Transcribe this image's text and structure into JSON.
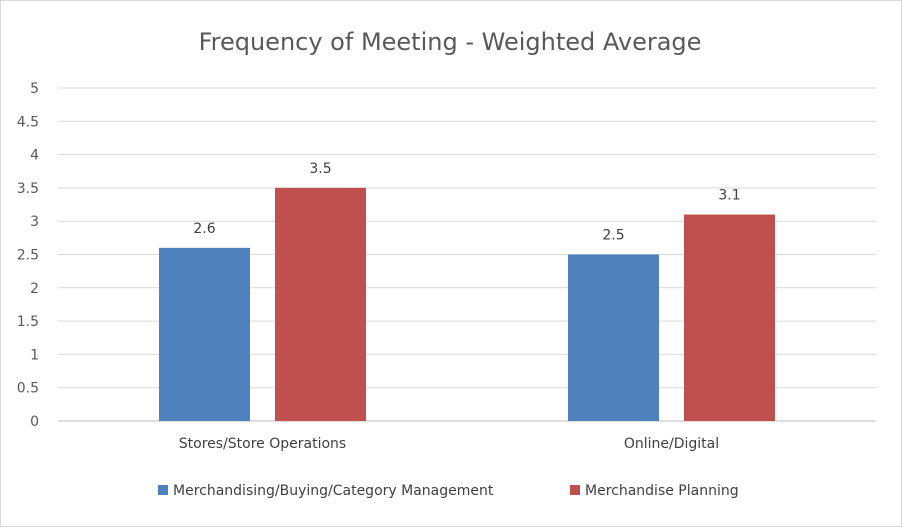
{
  "chart_data": {
    "type": "bar",
    "title": "Frequency of Meeting - Weighted Average",
    "categories": [
      "Stores/Store Operations",
      "Online/Digital"
    ],
    "series": [
      {
        "name": "Merchandising/Buying/Category Management",
        "values": [
          2.6,
          2.5
        ],
        "color": "#4f81bd"
      },
      {
        "name": "Merchandise Planning",
        "values": [
          3.5,
          3.1
        ],
        "color": "#c0504d"
      }
    ],
    "ylim": [
      0,
      5
    ],
    "yticks": [
      "0",
      "0.5",
      "1",
      "1.5",
      "2",
      "2.5",
      "3",
      "3.5",
      "4",
      "4.5",
      "5"
    ],
    "grid": true,
    "legend": "bottom"
  }
}
